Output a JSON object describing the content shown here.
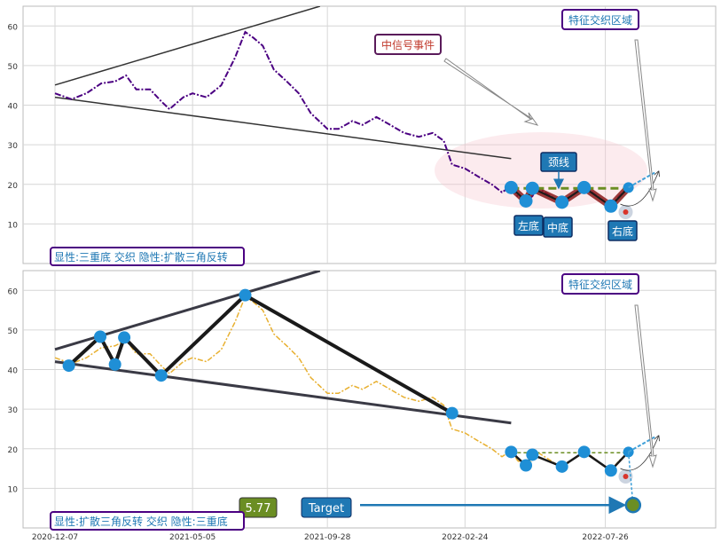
{
  "chart_data": [
    {
      "type": "line",
      "panel": "top",
      "ylim": [
        0,
        65
      ],
      "yticks": [
        10,
        20,
        30,
        40,
        50,
        60
      ],
      "grid": true,
      "xlim": [
        "2020-12-07",
        "2022-11-10"
      ],
      "price": [
        [
          "2020-12-07",
          43
        ],
        [
          "2020-12-25",
          41.5
        ],
        [
          "2021-01-10",
          43
        ],
        [
          "2021-01-26",
          45.5
        ],
        [
          "2021-02-10",
          46
        ],
        [
          "2021-02-22",
          47.5
        ],
        [
          "2021-03-05",
          44
        ],
        [
          "2021-03-20",
          44
        ],
        [
          "2021-04-01",
          41
        ],
        [
          "2021-04-10",
          39
        ],
        [
          "2021-04-25",
          42
        ],
        [
          "2021-05-05",
          43
        ],
        [
          "2021-05-20",
          42
        ],
        [
          "2021-06-05",
          45
        ],
        [
          "2021-06-20",
          52
        ],
        [
          "2021-07-01",
          58.5
        ],
        [
          "2021-07-10",
          57
        ],
        [
          "2021-07-20",
          55
        ],
        [
          "2021-08-01",
          49
        ],
        [
          "2021-08-15",
          46
        ],
        [
          "2021-08-28",
          43
        ],
        [
          "2021-09-10",
          38
        ],
        [
          "2021-09-28",
          34
        ],
        [
          "2021-10-10",
          34
        ],
        [
          "2021-10-25",
          36
        ],
        [
          "2021-11-05",
          35
        ],
        [
          "2021-11-20",
          37
        ],
        [
          "2021-12-05",
          35
        ],
        [
          "2021-12-20",
          33
        ],
        [
          "2022-01-05",
          32
        ],
        [
          "2022-01-20",
          33
        ],
        [
          "2022-02-01",
          31
        ],
        [
          "2022-02-10",
          25
        ],
        [
          "2022-02-24",
          24
        ],
        [
          "2022-03-10",
          22
        ],
        [
          "2022-03-25",
          20
        ],
        [
          "2022-04-05",
          18
        ],
        [
          "2022-04-15",
          19.5
        ],
        [
          "2022-04-22",
          17
        ],
        [
          "2022-05-01",
          15.8
        ],
        [
          "2022-05-08",
          17
        ],
        [
          "2022-05-13",
          19.2
        ],
        [
          "2022-05-28",
          17
        ],
        [
          "2022-06-09",
          15.2
        ],
        [
          "2022-06-22",
          17.5
        ],
        [
          "2022-07-03",
          19.5
        ],
        [
          "2022-07-20",
          16.5
        ],
        [
          "2022-08-01",
          14.5
        ],
        [
          "2022-08-10",
          17
        ],
        [
          "2022-08-20",
          19.2
        ]
      ],
      "triangle_lines": [
        [
          [
            "2020-12-07",
            45.1
          ],
          [
            "2021-09-20",
            65
          ]
        ],
        [
          [
            "2020-12-07",
            42
          ],
          [
            "2022-04-15",
            26.5
          ]
        ]
      ],
      "pattern_path": [
        [
          "2022-04-15",
          19.2
        ],
        [
          "2022-05-01",
          15.8
        ],
        [
          "2022-05-08",
          19
        ],
        [
          "2022-06-09",
          15.5
        ],
        [
          "2022-07-03",
          19.2
        ],
        [
          "2022-08-01",
          14.5
        ],
        [
          "2022-08-20",
          19.2
        ]
      ],
      "neckline": [
        [
          "2022-04-15",
          19
        ],
        [
          "2022-08-20",
          19
        ]
      ],
      "signal_target": [
        "2022-08-17",
        13
      ],
      "annotations": {
        "left_bottom": "左底",
        "middle_bottom": "中底",
        "right_bottom": "右底",
        "neckline": "颈线",
        "signal_event": "中信号事件",
        "feature_zone": "特征交织区域",
        "legend": "显性:三重底 交织 隐性:扩散三角反转"
      }
    },
    {
      "type": "line",
      "panel": "bottom",
      "ylim": [
        0,
        65
      ],
      "yticks": [
        10,
        20,
        30,
        40,
        50,
        60
      ],
      "grid": true,
      "xticks": [
        "2020-12-07",
        "2021-05-05",
        "2021-09-28",
        "2022-02-24",
        "2022-07-26"
      ],
      "triangle_lines": [
        [
          [
            "2020-12-07",
            45.1
          ],
          [
            "2021-09-20",
            65
          ]
        ],
        [
          [
            "2020-12-07",
            42
          ],
          [
            "2022-04-15",
            26.5
          ]
        ]
      ],
      "zigzag": [
        [
          "2020-12-22",
          41
        ],
        [
          "2021-01-25",
          48.3
        ],
        [
          "2021-02-10",
          41.3
        ],
        [
          "2021-02-20",
          48.1
        ],
        [
          "2021-04-01",
          38.5
        ],
        [
          "2021-07-01",
          58.8
        ],
        [
          "2022-02-10",
          29
        ]
      ],
      "pattern_path": [
        [
          "2022-04-15",
          19.2
        ],
        [
          "2022-05-01",
          15.8
        ],
        [
          "2022-05-08",
          18.5
        ],
        [
          "2022-06-09",
          15.5
        ],
        [
          "2022-07-03",
          19.2
        ],
        [
          "2022-08-01",
          14.5
        ],
        [
          "2022-08-20",
          19.2
        ]
      ],
      "neckline": [
        [
          "2022-04-15",
          19
        ],
        [
          "2022-08-20",
          19
        ]
      ],
      "target": [
        "2022-08-25",
        5.77
      ],
      "target_label": "Target",
      "target_value": "5.77",
      "annotations": {
        "feature_zone": "特征交织区域",
        "legend": "显性:扩散三角反转 交织 隐性:三重底"
      }
    }
  ]
}
